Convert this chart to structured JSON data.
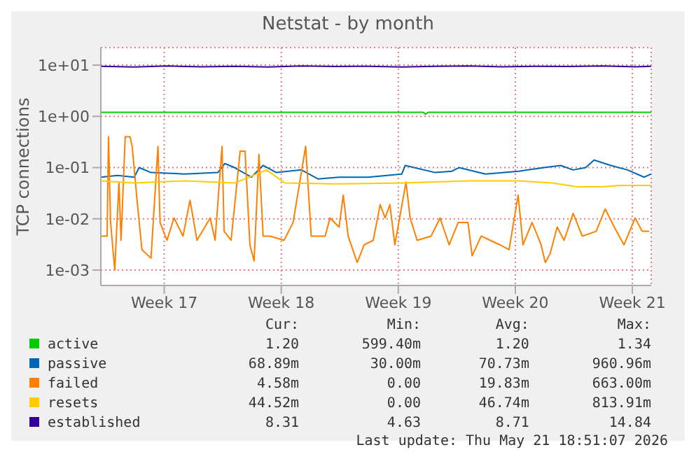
{
  "chart_data": {
    "type": "line",
    "title": "Netstat - by month",
    "ylabel": "TCP connections",
    "log": "y",
    "grid": true,
    "legend": "bottom",
    "marker": "none",
    "xlim": [
      "2026-04-18T21:00",
      "2026-05-21T19:00"
    ],
    "xticks": [
      {
        "value": "2026-04-22T16:00",
        "label": "Week 17"
      },
      {
        "value": "2026-04-29T16:00",
        "label": "Week 18"
      },
      {
        "value": "2026-05-06T16:00",
        "label": "Week 19"
      },
      {
        "value": "2026-05-13T16:00",
        "label": "Week 20"
      },
      {
        "value": "2026-05-20T16:00",
        "label": "Week 21"
      }
    ],
    "ylim": [
      0.0005,
      22
    ],
    "yticks": [
      {
        "value": 0.001,
        "label": "1e-03"
      },
      {
        "value": 0.01,
        "label": "1e-02"
      },
      {
        "value": 0.1,
        "label": "1e-01"
      },
      {
        "value": 1,
        "label": "1e+00"
      },
      {
        "value": 10,
        "label": "1e+01"
      }
    ],
    "series": [
      {
        "name": "active",
        "color": "#00cc00",
        "x": [
          "2026-04-18T21:00",
          "2026-05-08T04:00",
          "2026-05-08T07:00",
          "2026-05-08T11:00",
          "2026-05-21T19:00"
        ],
        "values": [
          1.2,
          1.2,
          1.1,
          1.2,
          1.2
        ]
      },
      {
        "name": "passive",
        "color": "#0066b3",
        "x": [
          "2026-04-18T21:00",
          "2026-04-19T21:00",
          "2026-04-20T21:00",
          "2026-04-21T04:00",
          "2026-04-21T21:00",
          "2026-04-23T21:00",
          "2026-04-25T21:00",
          "2026-04-26T07:00",
          "2026-04-26T21:00",
          "2026-04-27T21:00",
          "2026-04-28T14:00",
          "2026-04-29T09:00",
          "2026-04-30T21:00",
          "2026-05-01T21:00",
          "2026-05-03T03:00",
          "2026-05-04T21:00",
          "2026-05-06T21:00",
          "2026-05-07T02:00",
          "2026-05-08T21:00",
          "2026-05-09T21:00",
          "2026-05-10T07:00",
          "2026-05-11T21:00",
          "2026-05-13T21:00",
          "2026-05-15T09:00",
          "2026-05-16T09:00",
          "2026-05-17T03:00",
          "2026-05-17T21:00",
          "2026-05-18T09:00",
          "2026-05-19T09:00",
          "2026-05-20T09:00",
          "2026-05-21T09:00",
          "2026-05-21T19:00"
        ],
        "values": [
          0.065,
          0.07,
          0.065,
          0.1,
          0.08,
          0.075,
          0.08,
          0.12,
          0.1,
          0.065,
          0.11,
          0.08,
          0.09,
          0.06,
          0.065,
          0.065,
          0.075,
          0.11,
          0.08,
          0.085,
          0.1,
          0.075,
          0.085,
          0.1,
          0.11,
          0.09,
          0.1,
          0.14,
          0.11,
          0.09,
          0.065,
          0.075
        ]
      },
      {
        "name": "failed",
        "color": "#ff8000",
        "x": [
          "2026-04-18T21:00",
          "2026-04-19T06:00",
          "2026-04-19T08:00",
          "2026-04-19T11:00",
          "2026-04-19T17:00",
          "2026-04-19T23:00",
          "2026-04-20T02:00",
          "2026-04-20T08:00",
          "2026-04-20T15:00",
          "2026-04-20T18:00",
          "2026-04-21T01:00",
          "2026-04-21T08:00",
          "2026-04-21T14:00",
          "2026-04-21T21:00",
          "2026-04-22T07:00",
          "2026-04-22T10:00",
          "2026-04-22T20:00",
          "2026-04-23T06:00",
          "2026-04-23T19:00",
          "2026-04-24T05:00",
          "2026-04-24T15:00",
          "2026-04-25T10:00",
          "2026-04-25T17:00",
          "2026-04-26T03:00",
          "2026-04-26T06:00",
          "2026-04-26T16:00",
          "2026-04-27T05:00",
          "2026-04-27T12:00",
          "2026-04-27T19:00",
          "2026-04-28T01:00",
          "2026-04-28T08:00",
          "2026-04-28T14:00",
          "2026-04-29T00:00",
          "2026-04-29T20:00",
          "2026-04-30T09:00",
          "2026-05-01T03:00",
          "2026-05-01T11:00",
          "2026-05-02T07:00",
          "2026-05-02T14:00",
          "2026-05-03T03:00",
          "2026-05-03T09:00",
          "2026-05-03T16:00",
          "2026-05-04T05:00",
          "2026-05-04T15:00",
          "2026-05-05T04:00",
          "2026-05-05T14:00",
          "2026-05-05T21:00",
          "2026-05-06T04:00",
          "2026-05-06T11:00",
          "2026-05-07T03:00",
          "2026-05-07T09:00",
          "2026-05-07T19:00",
          "2026-05-08T15:00",
          "2026-05-09T04:00",
          "2026-05-09T17:00",
          "2026-05-10T06:00",
          "2026-05-10T20:00",
          "2026-05-11T02:00",
          "2026-05-11T15:00",
          "2026-05-12T04:00",
          "2026-05-12T18:00",
          "2026-05-13T07:00",
          "2026-05-13T20:00",
          "2026-05-14T03:00",
          "2026-05-14T16:00",
          "2026-05-15T05:00",
          "2026-05-15T11:00",
          "2026-05-15T18:00",
          "2026-05-16T04:00",
          "2026-05-16T14:00",
          "2026-05-17T03:00",
          "2026-05-17T16:00",
          "2026-05-18T12:00",
          "2026-05-19T01:00",
          "2026-05-19T14:00",
          "2026-05-20T04:00",
          "2026-05-20T20:00",
          "2026-05-21T06:00",
          "2026-05-21T16:00"
        ],
        "values": [
          0.0046,
          0.0046,
          0.4,
          0.0085,
          0.001,
          0.052,
          0.0038,
          0.4,
          0.4,
          0.26,
          0.023,
          0.0025,
          0.0021,
          0.0017,
          0.26,
          0.0085,
          0.0038,
          0.0104,
          0.0046,
          0.023,
          0.0038,
          0.0104,
          0.0038,
          0.26,
          0.0057,
          0.0038,
          0.21,
          0.21,
          0.0031,
          0.0015,
          0.18,
          0.0046,
          0.0046,
          0.0038,
          0.0085,
          0.26,
          0.0046,
          0.0046,
          0.0104,
          0.0069,
          0.029,
          0.0046,
          0.0014,
          0.0031,
          0.0038,
          0.019,
          0.0104,
          0.019,
          0.0031,
          0.052,
          0.0104,
          0.0038,
          0.0046,
          0.0104,
          0.0031,
          0.0085,
          0.0085,
          0.0019,
          0.0046,
          0.0038,
          0.0031,
          0.0025,
          0.029,
          0.0031,
          0.0085,
          0.0031,
          0.0014,
          0.0021,
          0.0069,
          0.0038,
          0.0128,
          0.0046,
          0.0057,
          0.0156,
          0.0069,
          0.0031,
          0.0104,
          0.0057,
          0.0057
        ]
      },
      {
        "name": "resets",
        "color": "#ffcc00",
        "x": [
          "2026-04-18T21:00",
          "2026-04-20T21:00",
          "2026-04-23T21:00",
          "2026-04-26T21:00",
          "2026-04-28T19:00",
          "2026-04-29T21:00",
          "2026-05-02T21:00",
          "2026-05-06T21:00",
          "2026-05-10T21:00",
          "2026-05-13T21:00",
          "2026-05-15T21:00",
          "2026-05-17T09:00",
          "2026-05-18T21:00",
          "2026-05-19T21:00",
          "2026-05-21T19:00"
        ],
        "values": [
          0.055,
          0.05,
          0.055,
          0.05,
          0.09,
          0.05,
          0.048,
          0.05,
          0.055,
          0.055,
          0.05,
          0.042,
          0.042,
          0.045,
          0.045
        ]
      },
      {
        "name": "established",
        "color": "#330099",
        "x": [
          "2026-04-18T21:00",
          "2026-04-20T21:00",
          "2026-04-22T21:00",
          "2026-04-24T21:00",
          "2026-04-26T21:00",
          "2026-04-28T21:00",
          "2026-04-30T21:00",
          "2026-05-02T21:00",
          "2026-05-04T21:00",
          "2026-05-06T21:00",
          "2026-05-08T21:00",
          "2026-05-10T21:00",
          "2026-05-12T21:00",
          "2026-05-14T21:00",
          "2026-05-16T21:00",
          "2026-05-18T21:00",
          "2026-05-20T21:00",
          "2026-05-21T19:00"
        ],
        "values": [
          9.5,
          9.2,
          9.6,
          9.3,
          9.5,
          9.2,
          9.6,
          9.4,
          9.5,
          9.2,
          9.5,
          9.6,
          9.3,
          9.5,
          9.4,
          9.6,
          9.3,
          9.5
        ]
      }
    ],
    "annotations": [
      "Cur:",
      "Min:",
      "Avg:",
      "Max:",
      "1.20",
      "599.40m",
      "1.20",
      "1.34",
      "68.89m",
      "30.00m",
      "70.73m",
      "960.96m",
      "4.58m",
      "0.00",
      "19.83m",
      "663.00m",
      "44.52m",
      "0.00",
      "46.74m",
      "813.91m",
      "8.31",
      "4.63",
      "8.71",
      "14.84",
      "Last update: Thu May 21 18:51:07 2026"
    ]
  }
}
